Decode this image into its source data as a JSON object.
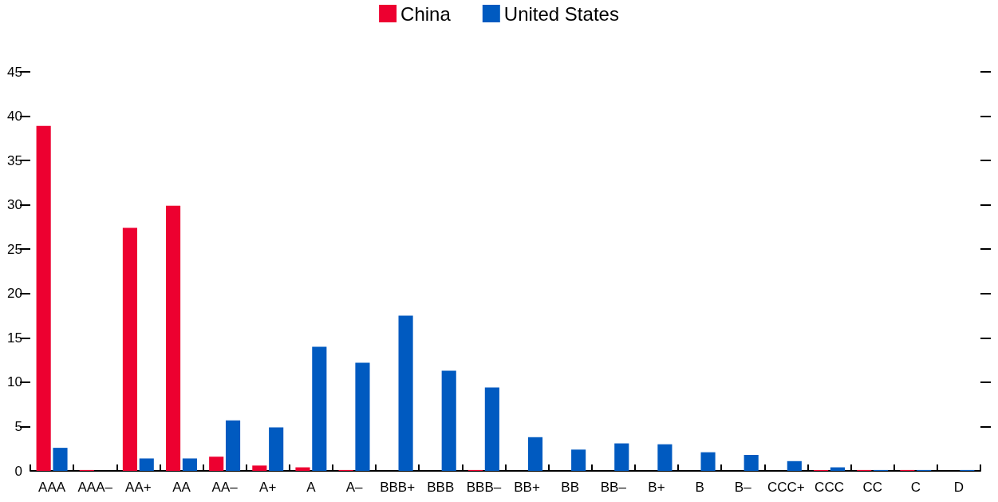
{
  "chart_data": {
    "type": "bar",
    "categories": [
      "AAA",
      "AAA–",
      "AA+",
      "AA",
      "AA–",
      "A+",
      "A",
      "A–",
      "BBB+",
      "BBB",
      "BBB–",
      "BB+",
      "BB",
      "BB–",
      "B+",
      "B",
      "B–",
      "CCC+",
      "CCC",
      "CC",
      "C",
      "D"
    ],
    "series": [
      {
        "name": "China",
        "color": "#ed0030",
        "values": [
          38.9,
          0.1,
          27.4,
          29.9,
          1.6,
          0.6,
          0.4,
          0.1,
          0,
          0,
          0.1,
          0,
          0,
          0,
          0,
          0,
          0,
          0,
          0.1,
          0.1,
          0.1,
          0
        ]
      },
      {
        "name": "United States",
        "color": "#005ac0",
        "values": [
          2.6,
          0,
          1.4,
          1.4,
          5.7,
          4.9,
          14.0,
          12.2,
          17.5,
          11.3,
          9.4,
          3.8,
          2.4,
          3.1,
          3.0,
          2.1,
          1.8,
          1.1,
          0.4,
          0.1,
          0.1,
          0.1
        ]
      }
    ],
    "ylim": [
      0,
      45
    ],
    "yticks": [
      0,
      5,
      10,
      15,
      20,
      25,
      30,
      35,
      40,
      45
    ],
    "grid": false,
    "legend": "top"
  }
}
